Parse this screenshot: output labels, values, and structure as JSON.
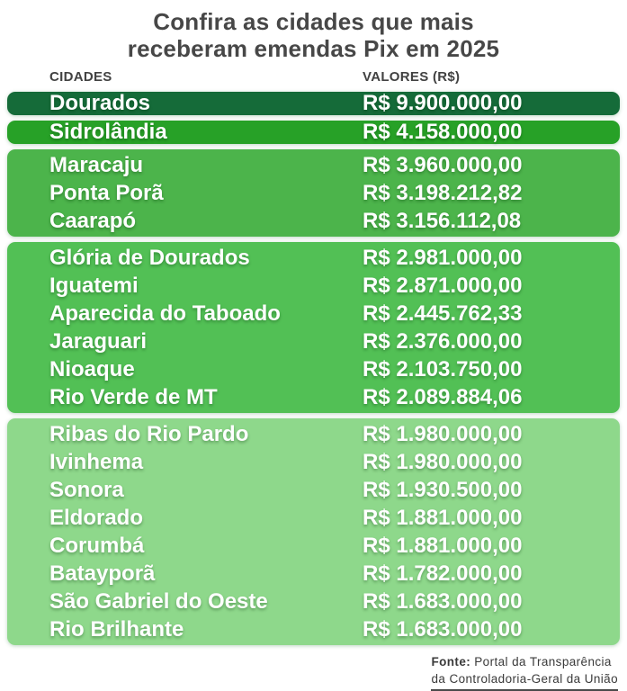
{
  "title": {
    "line1": "Confira as cidades que mais",
    "line2": "receberam emendas Pix em 2025"
  },
  "table": {
    "headers": {
      "cities": "CIDADES",
      "values": "VALORES (R$)"
    },
    "groups": [
      {
        "color": "#156b39",
        "rows": [
          {
            "city": "Dourados",
            "value": "R$ 9.900.000,00"
          }
        ]
      },
      {
        "color": "#27a127",
        "rows": [
          {
            "city": "Sidrolândia",
            "value": "R$ 4.158.000,00"
          }
        ]
      },
      {
        "color": "#4cb44b",
        "rows": [
          {
            "city": "Maracaju",
            "value": "R$ 3.960.000,00"
          },
          {
            "city": "Ponta Porã",
            "value": "R$ 3.198.212,82"
          },
          {
            "city": "Caarapó",
            "value": "R$ 3.156.112,08"
          }
        ]
      },
      {
        "color": "#52c055",
        "rows": [
          {
            "city": "Glória de Dourados",
            "value": "R$ 2.981.000,00"
          },
          {
            "city": "Iguatemi",
            "value": "R$ 2.871.000,00"
          },
          {
            "city": "Aparecida do Taboado",
            "value": "R$ 2.445.762,33"
          },
          {
            "city": "Jaraguari",
            "value": "R$ 2.376.000,00"
          },
          {
            "city": "Nioaque",
            "value": "R$ 2.103.750,00"
          },
          {
            "city": "Rio Verde de MT",
            "value": "R$ 2.089.884,06"
          }
        ]
      },
      {
        "color": "#8ed88b",
        "rows": [
          {
            "city": "Ribas do Rio Pardo",
            "value": "R$ 1.980.000,00"
          },
          {
            "city": "Ivinhema",
            "value": "R$ 1.980.000,00"
          },
          {
            "city": "Sonora",
            "value": "R$ 1.930.500,00"
          },
          {
            "city": "Eldorado",
            "value": "R$ 1.881.000,00"
          },
          {
            "city": "Corumbá",
            "value": "R$ 1.881.000,00"
          },
          {
            "city": "Batayporã",
            "value": "R$ 1.782.000,00"
          },
          {
            "city": "São Gabriel do Oeste",
            "value": "R$ 1.683.000,00"
          },
          {
            "city": "Rio Brilhante",
            "value": "R$ 1.683.000,00"
          }
        ]
      }
    ]
  },
  "footer": {
    "source_label": "Fonte:",
    "source_line1": "Portal da Transparência",
    "source_line2": "da Controladoria-Geral da União"
  },
  "colors": {
    "title_text": "#474747",
    "header_text": "#424242",
    "row_text": "#ffffff",
    "group1": "#156b39",
    "group2": "#27a127",
    "group3": "#4cb44b",
    "group4": "#52c055",
    "group5": "#8ed88b",
    "background": "#ffffff"
  },
  "chart_data": {
    "type": "table",
    "title": "Confira as cidades que mais receberam emendas Pix em 2025",
    "columns": [
      "CIDADES",
      "VALORES (R$)"
    ],
    "categories": [
      "Dourados",
      "Sidrolândia",
      "Maracaju",
      "Ponta Porã",
      "Caarapó",
      "Glória de Dourados",
      "Iguatemi",
      "Aparecida do Taboado",
      "Jaraguari",
      "Nioaque",
      "Rio Verde de MT",
      "Ribas do Rio Pardo",
      "Ivinhema",
      "Sonora",
      "Eldorado",
      "Corumbá",
      "Batayporã",
      "São Gabriel do Oeste",
      "Rio Brilhante"
    ],
    "values": [
      9900000.0,
      4158000.0,
      3960000.0,
      3198212.82,
      3156112.08,
      2981000.0,
      2871000.0,
      2445762.33,
      2376000.0,
      2103750.0,
      2089884.06,
      1980000.0,
      1980000.0,
      1930500.0,
      1881000.0,
      1881000.0,
      1782000.0,
      1683000.0,
      1683000.0
    ],
    "value_unit": "R$",
    "source": "Fonte: Portal da Transparência da Controladoria-Geral da União"
  }
}
